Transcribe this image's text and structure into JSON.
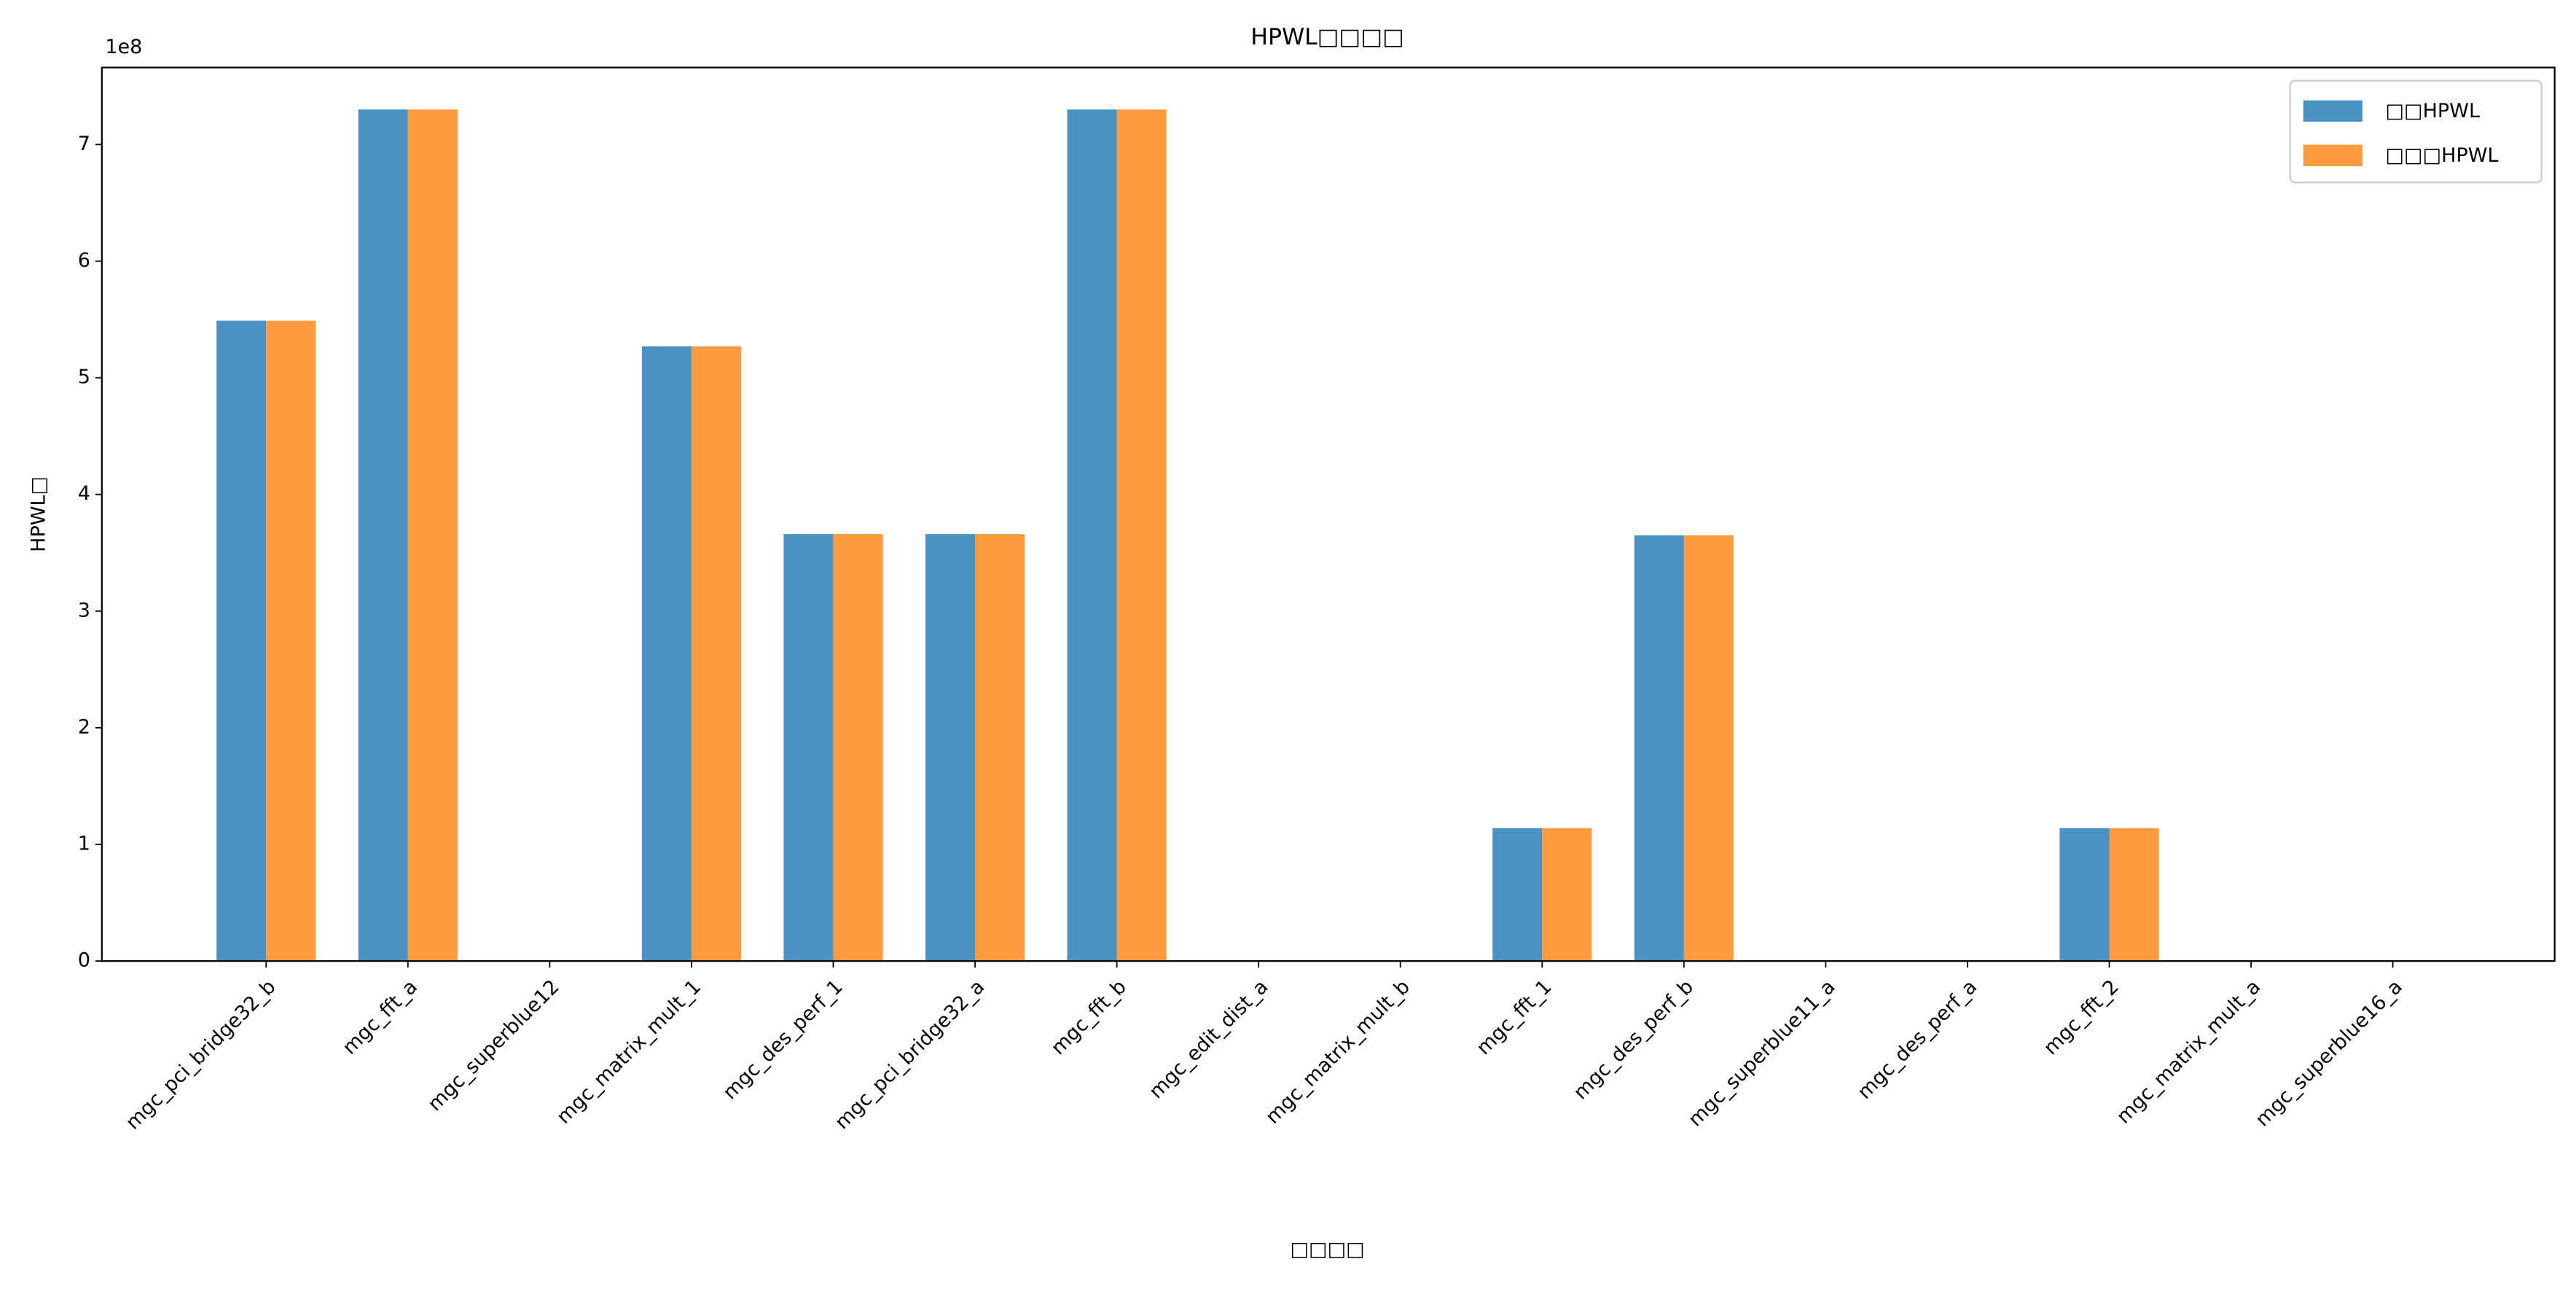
{
  "chart_data": {
    "type": "bar",
    "title": "HPWL□□□□",
    "x_label": "□□□□",
    "y_label": "HPWL□",
    "y_offset_label": "1e8",
    "categories": [
      "mgc_pci_bridge32_b",
      "mgc_fft_a",
      "mgc_superblue12",
      "mgc_matrix_mult_1",
      "mgc_des_perf_1",
      "mgc_pci_bridge32_a",
      "mgc_fft_b",
      "mgc_edit_dist_a",
      "mgc_matrix_mult_b",
      "mgc_fft_1",
      "mgc_des_perf_b",
      "mgc_superblue11_a",
      "mgc_des_perf_a",
      "mgc_fft_2",
      "mgc_matrix_mult_a",
      "mgc_superblue16_a"
    ],
    "series": [
      {
        "name": "□□HPWL",
        "color": "#4a92c4",
        "values": [
          5.49,
          7.3,
          0,
          5.27,
          3.66,
          3.66,
          7.3,
          0,
          0,
          1.14,
          3.65,
          0,
          0,
          1.14,
          0,
          0
        ]
      },
      {
        "name": "□□□HPWL",
        "color": "#ff9a3f",
        "values": [
          5.49,
          7.3,
          0,
          5.27,
          3.66,
          3.66,
          7.3,
          0,
          0,
          1.14,
          3.65,
          0,
          0,
          1.14,
          0,
          0
        ]
      }
    ],
    "ylim": [
      0,
      7.66
    ],
    "yticks": [
      0,
      1,
      2,
      3,
      4,
      5,
      6,
      7
    ],
    "grid": false,
    "legend": "upper right"
  }
}
